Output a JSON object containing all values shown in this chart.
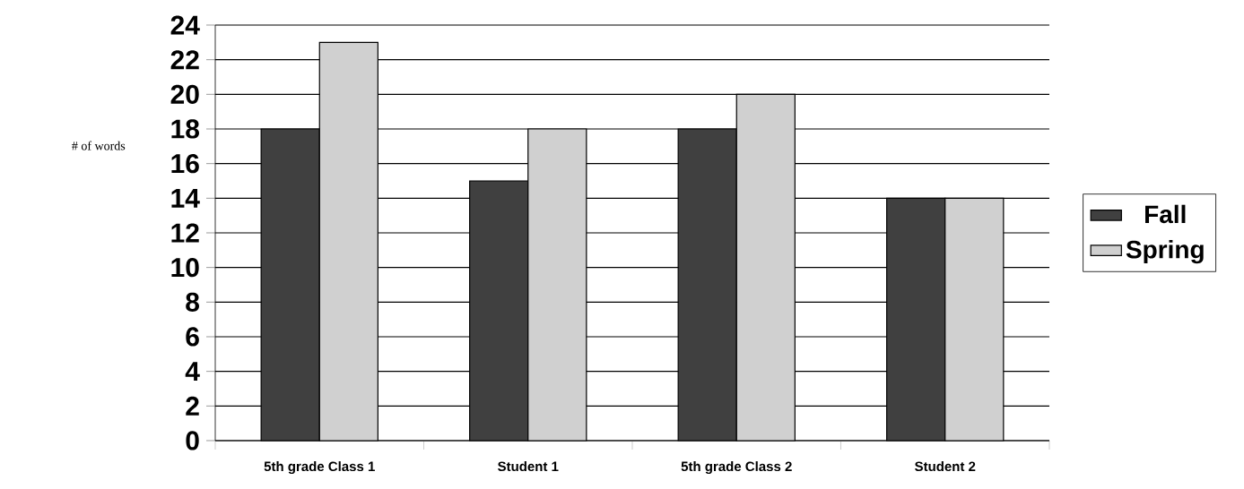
{
  "chart_data": {
    "type": "bar",
    "ylabel": "# of words",
    "categories": [
      "5th grade Class 1",
      "Student 1",
      "5th grade Class 2",
      "Student 2"
    ],
    "series": [
      {
        "name": "Fall",
        "color": "#404040",
        "values": [
          18,
          15,
          18,
          14
        ]
      },
      {
        "name": "Spring",
        "color": "#d0d0d0",
        "values": [
          23,
          18,
          20,
          14
        ]
      }
    ],
    "ylim": [
      0,
      24
    ],
    "yticks": [
      0,
      2,
      4,
      6,
      8,
      10,
      12,
      14,
      16,
      18,
      20,
      22,
      24
    ],
    "grid": "y",
    "legend": "right"
  }
}
